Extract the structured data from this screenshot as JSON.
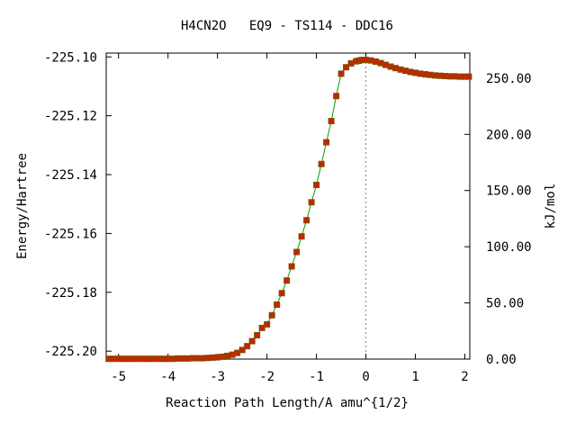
{
  "chart_data": {
    "type": "line",
    "title": "H4CN2O   EQ9 - TS114 - DDC16",
    "xlabel": "Reaction Path Length/A amu^{1/2}",
    "ylabel_left": "Energy/Hartree",
    "ylabel_right": "kJ/mol",
    "xlim": [
      -5.25,
      2.1
    ],
    "ylim_left": [
      -225.2027,
      -225.0987
    ],
    "ylim_right": [
      0,
      272.3
    ],
    "x_ticks": [
      {
        "value": -5,
        "label": "-5"
      },
      {
        "value": -4,
        "label": "-4"
      },
      {
        "value": -3,
        "label": "-3"
      },
      {
        "value": -2,
        "label": "-2"
      },
      {
        "value": -1,
        "label": "-1"
      },
      {
        "value": 0,
        "label": "0"
      },
      {
        "value": 1,
        "label": "1"
      },
      {
        "value": 2,
        "label": "2"
      }
    ],
    "y_ticks_left": [
      {
        "value": -225.1,
        "label": "-225.10"
      },
      {
        "value": -225.12,
        "label": "-225.12"
      },
      {
        "value": -225.14,
        "label": "-225.14"
      },
      {
        "value": -225.16,
        "label": "-225.16"
      },
      {
        "value": -225.18,
        "label": "-225.18"
      },
      {
        "value": -225.2,
        "label": "-225.20"
      }
    ],
    "y_ticks_right": [
      {
        "value": 0,
        "label": "0.00"
      },
      {
        "value": 50,
        "label": "50.00"
      },
      {
        "value": 100,
        "label": "100.00"
      },
      {
        "value": 150,
        "label": "150.00"
      },
      {
        "value": 200,
        "label": "200.00"
      },
      {
        "value": 250,
        "label": "250.00"
      }
    ],
    "ts_marker_x": 0,
    "grid": false,
    "line_color": "#00a000",
    "marker_color": "#cc2200",
    "marker_edge_color": "#7a5000",
    "guide_color": "#808080",
    "series": [
      {
        "x": [
          -5.2,
          -5.1,
          -5.0,
          -4.9,
          -4.8,
          -4.7,
          -4.6,
          -4.5,
          -4.4,
          -4.3,
          -4.2,
          -4.1,
          -4.0,
          -3.9,
          -3.8,
          -3.7,
          -3.6,
          -3.5,
          -3.4,
          -3.3,
          -3.2,
          -3.1,
          -3.0,
          -2.9,
          -2.8,
          -2.7,
          -2.6,
          -2.5,
          -2.4,
          -2.3,
          -2.2,
          -2.1,
          -2.0,
          -1.9,
          -1.8,
          -1.7,
          -1.6,
          -1.5,
          -1.4,
          -1.3,
          -1.2,
          -1.1,
          -1.0,
          -0.9,
          -0.8,
          -0.7,
          -0.6,
          -0.5,
          -0.4,
          -0.3,
          -0.2,
          -0.15,
          -0.1,
          -0.05,
          0.0,
          0.1,
          0.2,
          0.3,
          0.4,
          0.5,
          0.6,
          0.7,
          0.8,
          0.9,
          1.0,
          1.1,
          1.2,
          1.3,
          1.4,
          1.5,
          1.6,
          1.7,
          1.8,
          1.9,
          2.0,
          2.08
        ],
        "y": [
          -225.2026,
          -225.2026,
          -225.2026,
          -225.2026,
          -225.2026,
          -225.2026,
          -225.2026,
          -225.2026,
          -225.2026,
          -225.2026,
          -225.2026,
          -225.2026,
          -225.2026,
          -225.2026,
          -225.2025,
          -225.2025,
          -225.2025,
          -225.2024,
          -225.2024,
          -225.2024,
          -225.2023,
          -225.2022,
          -225.2021,
          -225.2019,
          -225.2016,
          -225.2012,
          -225.2006,
          -225.1996,
          -225.1983,
          -225.1966,
          -225.1946,
          -225.1921,
          -225.1909,
          -225.1878,
          -225.1842,
          -225.1803,
          -225.176,
          -225.1712,
          -225.1663,
          -225.161,
          -225.1555,
          -225.1494,
          -225.1435,
          -225.1364,
          -225.129,
          -225.1218,
          -225.1133,
          -225.1057,
          -225.1035,
          -225.1022,
          -225.1015,
          -225.1013,
          -225.1011,
          -225.101,
          -225.101,
          -225.1012,
          -225.1016,
          -225.1021,
          -225.1027,
          -225.1033,
          -225.1038,
          -225.1043,
          -225.1047,
          -225.1051,
          -225.1054,
          -225.1057,
          -225.1059,
          -225.1061,
          -225.1063,
          -225.1064,
          -225.1065,
          -225.1066,
          -225.1066,
          -225.1067,
          -225.1067,
          -225.1067
        ]
      }
    ]
  }
}
